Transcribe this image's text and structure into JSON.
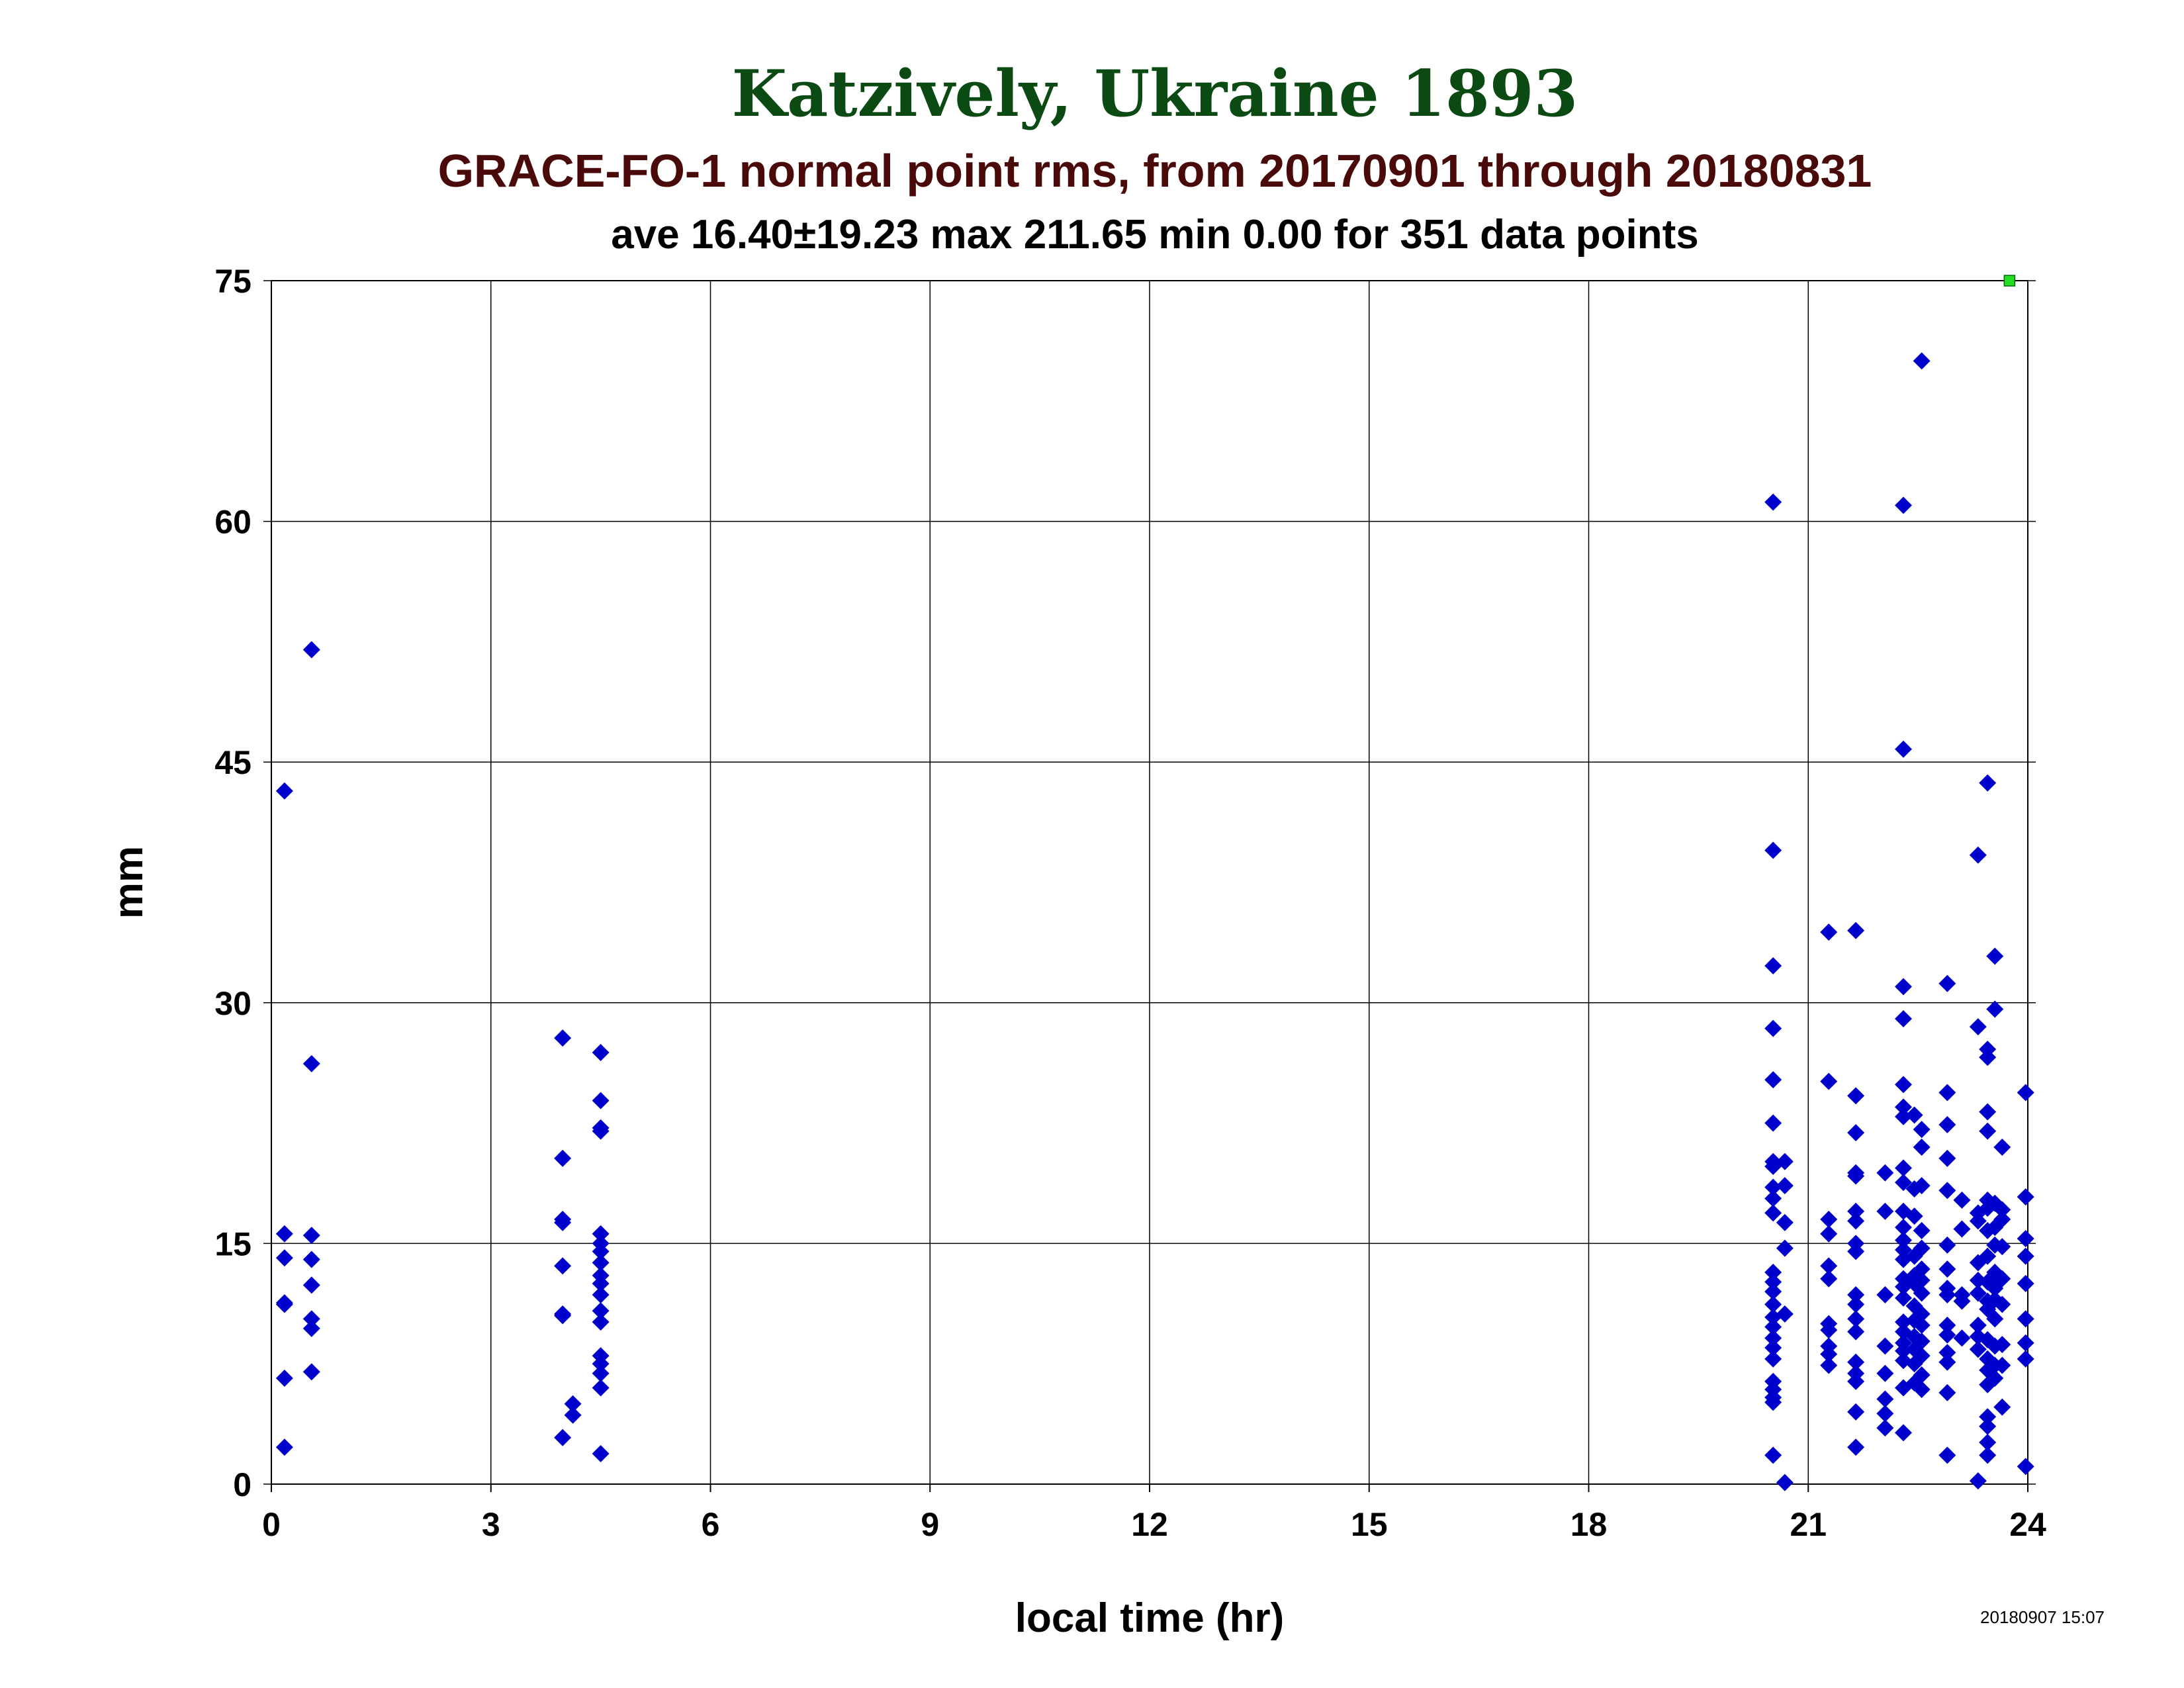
{
  "chart_data": {
    "type": "scatter",
    "title": "Katzively, Ukraine 1893",
    "subtitle": "GRACE-FO-1 normal point rms, from 20170901 through 20180831",
    "stats_line": "ave 16.40±19.23 max 211.65 min 0.00 for 351 data points",
    "xlabel": "local time (hr)",
    "ylabel": "mm",
    "xlim": [
      0,
      24
    ],
    "ylim": [
      0,
      75
    ],
    "xticks": [
      "0",
      "3",
      "6",
      "9",
      "12",
      "15",
      "18",
      "21",
      "24"
    ],
    "yticks": [
      "0",
      "15",
      "30",
      "45",
      "60",
      "75"
    ],
    "grid": true,
    "timestamp": "20180907 15:07",
    "colors": {
      "points": "#0000cc",
      "marker_overflow": "#22dd22",
      "title": "#0b4a12",
      "subtitle": "#4a0a0a"
    },
    "overflow_marker": {
      "x": 23.75,
      "y": 75
    },
    "series": [
      {
        "marker": "diamond",
        "points": [
          [
            0.18,
            43.2
          ],
          [
            0.18,
            15.6
          ],
          [
            0.18,
            14.1
          ],
          [
            0.18,
            11.3
          ],
          [
            0.18,
            11.2
          ],
          [
            0.18,
            6.6
          ],
          [
            0.18,
            2.3
          ],
          [
            0.55,
            52.0
          ],
          [
            0.55,
            26.2
          ],
          [
            0.55,
            15.5
          ],
          [
            0.55,
            14.0
          ],
          [
            0.55,
            12.4
          ],
          [
            0.55,
            10.3
          ],
          [
            0.55,
            9.7
          ],
          [
            0.55,
            7.0
          ],
          [
            3.98,
            27.8
          ],
          [
            3.98,
            20.3
          ],
          [
            3.98,
            16.5
          ],
          [
            3.98,
            16.3
          ],
          [
            3.98,
            13.6
          ],
          [
            3.98,
            10.6
          ],
          [
            3.98,
            10.5
          ],
          [
            3.98,
            2.9
          ],
          [
            4.12,
            5.0
          ],
          [
            4.12,
            4.3
          ],
          [
            4.5,
            26.9
          ],
          [
            4.5,
            23.9
          ],
          [
            4.5,
            22.2
          ],
          [
            4.5,
            22.0
          ],
          [
            4.5,
            15.6
          ],
          [
            4.5,
            15.0
          ],
          [
            4.5,
            14.5
          ],
          [
            4.5,
            13.8
          ],
          [
            4.5,
            13.0
          ],
          [
            4.5,
            12.5
          ],
          [
            4.5,
            11.8
          ],
          [
            4.5,
            10.8
          ],
          [
            4.5,
            10.1
          ],
          [
            4.5,
            8.0
          ],
          [
            4.5,
            7.5
          ],
          [
            4.5,
            6.9
          ],
          [
            4.5,
            6.0
          ],
          [
            4.5,
            1.9
          ],
          [
            20.52,
            61.2
          ],
          [
            20.52,
            39.5
          ],
          [
            20.52,
            32.3
          ],
          [
            20.52,
            28.4
          ],
          [
            20.52,
            25.2
          ],
          [
            20.52,
            22.5
          ],
          [
            20.52,
            20.1
          ],
          [
            20.52,
            19.8
          ],
          [
            20.52,
            18.5
          ],
          [
            20.52,
            17.8
          ],
          [
            20.52,
            16.9
          ],
          [
            20.52,
            13.2
          ],
          [
            20.52,
            12.6
          ],
          [
            20.52,
            12.0
          ],
          [
            20.52,
            11.2
          ],
          [
            20.52,
            10.4
          ],
          [
            20.52,
            9.8
          ],
          [
            20.52,
            9.1
          ],
          [
            20.52,
            8.5
          ],
          [
            20.52,
            7.8
          ],
          [
            20.52,
            6.4
          ],
          [
            20.52,
            5.9
          ],
          [
            20.52,
            5.4
          ],
          [
            20.52,
            5.1
          ],
          [
            20.52,
            1.8
          ],
          [
            20.68,
            20.1
          ],
          [
            20.68,
            18.6
          ],
          [
            20.68,
            16.3
          ],
          [
            20.68,
            14.7
          ],
          [
            20.68,
            10.6
          ],
          [
            20.68,
            0.1
          ],
          [
            21.28,
            34.4
          ],
          [
            21.28,
            25.1
          ],
          [
            21.28,
            16.5
          ],
          [
            21.28,
            15.6
          ],
          [
            21.28,
            13.6
          ],
          [
            21.28,
            12.8
          ],
          [
            21.28,
            10.0
          ],
          [
            21.28,
            9.6
          ],
          [
            21.28,
            8.6
          ],
          [
            21.28,
            8.1
          ],
          [
            21.28,
            7.4
          ],
          [
            21.65,
            34.5
          ],
          [
            21.65,
            24.2
          ],
          [
            21.65,
            21.9
          ],
          [
            21.65,
            19.4
          ],
          [
            21.65,
            19.2
          ],
          [
            21.65,
            17.0
          ],
          [
            21.65,
            16.4
          ],
          [
            21.65,
            15.0
          ],
          [
            21.65,
            14.5
          ],
          [
            21.65,
            11.8
          ],
          [
            21.65,
            11.2
          ],
          [
            21.65,
            10.3
          ],
          [
            21.65,
            9.5
          ],
          [
            21.65,
            7.6
          ],
          [
            21.65,
            6.9
          ],
          [
            21.65,
            6.4
          ],
          [
            21.65,
            4.5
          ],
          [
            21.65,
            2.3
          ],
          [
            22.05,
            19.4
          ],
          [
            22.05,
            17.0
          ],
          [
            22.05,
            11.8
          ],
          [
            22.05,
            8.6
          ],
          [
            22.05,
            6.9
          ],
          [
            22.05,
            5.3
          ],
          [
            22.05,
            4.4
          ],
          [
            22.05,
            3.5
          ],
          [
            22.3,
            61.0
          ],
          [
            22.3,
            45.8
          ],
          [
            22.3,
            31.0
          ],
          [
            22.3,
            29.0
          ],
          [
            22.3,
            24.9
          ],
          [
            22.3,
            23.5
          ],
          [
            22.3,
            22.9
          ],
          [
            22.3,
            19.7
          ],
          [
            22.3,
            18.8
          ],
          [
            22.3,
            17.0
          ],
          [
            22.3,
            16.0
          ],
          [
            22.3,
            15.2
          ],
          [
            22.3,
            14.6
          ],
          [
            22.3,
            14.0
          ],
          [
            22.3,
            12.8
          ],
          [
            22.3,
            12.3
          ],
          [
            22.3,
            11.6
          ],
          [
            22.3,
            10.1
          ],
          [
            22.3,
            9.5
          ],
          [
            22.3,
            8.8
          ],
          [
            22.3,
            8.3
          ],
          [
            22.3,
            7.7
          ],
          [
            22.3,
            6.0
          ],
          [
            22.3,
            3.2
          ],
          [
            22.45,
            23.0
          ],
          [
            22.45,
            18.4
          ],
          [
            22.45,
            16.7
          ],
          [
            22.45,
            14.2
          ],
          [
            22.45,
            13.0
          ],
          [
            22.45,
            12.5
          ],
          [
            22.45,
            11.1
          ],
          [
            22.45,
            10.2
          ],
          [
            22.45,
            9.2
          ],
          [
            22.45,
            8.4
          ],
          [
            22.45,
            7.5
          ],
          [
            22.45,
            6.3
          ],
          [
            22.55,
            70.0
          ],
          [
            22.55,
            22.1
          ],
          [
            22.55,
            21.0
          ],
          [
            22.55,
            18.6
          ],
          [
            22.55,
            15.8
          ],
          [
            22.55,
            14.7
          ],
          [
            22.55,
            13.4
          ],
          [
            22.55,
            12.7
          ],
          [
            22.55,
            11.9
          ],
          [
            22.55,
            10.6
          ],
          [
            22.55,
            9.9
          ],
          [
            22.55,
            8.9
          ],
          [
            22.55,
            8.0
          ],
          [
            22.55,
            6.8
          ],
          [
            22.55,
            5.9
          ],
          [
            22.9,
            31.2
          ],
          [
            22.9,
            24.4
          ],
          [
            22.9,
            22.4
          ],
          [
            22.9,
            20.3
          ],
          [
            22.9,
            18.3
          ],
          [
            22.9,
            14.9
          ],
          [
            22.9,
            13.4
          ],
          [
            22.9,
            12.2
          ],
          [
            22.9,
            11.8
          ],
          [
            22.9,
            9.9
          ],
          [
            22.9,
            9.3
          ],
          [
            22.9,
            8.2
          ],
          [
            22.9,
            7.6
          ],
          [
            22.9,
            5.7
          ],
          [
            22.9,
            1.8
          ],
          [
            23.1,
            17.7
          ],
          [
            23.1,
            15.9
          ],
          [
            23.1,
            11.8
          ],
          [
            23.1,
            11.4
          ],
          [
            23.1,
            9.1
          ],
          [
            23.32,
            39.2
          ],
          [
            23.32,
            28.5
          ],
          [
            23.32,
            16.9
          ],
          [
            23.32,
            16.4
          ],
          [
            23.32,
            13.8
          ],
          [
            23.32,
            12.7
          ],
          [
            23.32,
            11.9
          ],
          [
            23.32,
            9.9
          ],
          [
            23.32,
            9.2
          ],
          [
            23.32,
            8.4
          ],
          [
            23.32,
            0.2
          ],
          [
            23.45,
            43.7
          ],
          [
            23.45,
            27.1
          ],
          [
            23.45,
            26.6
          ],
          [
            23.45,
            23.2
          ],
          [
            23.45,
            22.0
          ],
          [
            23.45,
            17.7
          ],
          [
            23.45,
            17.2
          ],
          [
            23.45,
            15.8
          ],
          [
            23.45,
            14.2
          ],
          [
            23.45,
            12.6
          ],
          [
            23.45,
            11.4
          ],
          [
            23.45,
            10.9
          ],
          [
            23.45,
            9.0
          ],
          [
            23.45,
            7.8
          ],
          [
            23.45,
            7.1
          ],
          [
            23.45,
            6.2
          ],
          [
            23.45,
            4.2
          ],
          [
            23.45,
            3.6
          ],
          [
            23.45,
            2.6
          ],
          [
            23.45,
            1.8
          ],
          [
            23.55,
            32.9
          ],
          [
            23.55,
            29.6
          ],
          [
            23.55,
            17.5
          ],
          [
            23.55,
            16.0
          ],
          [
            23.55,
            14.9
          ],
          [
            23.55,
            13.2
          ],
          [
            23.55,
            12.2
          ],
          [
            23.55,
            11.5
          ],
          [
            23.55,
            10.3
          ],
          [
            23.55,
            8.6
          ],
          [
            23.55,
            7.4
          ],
          [
            23.55,
            6.6
          ],
          [
            23.65,
            21.0
          ],
          [
            23.65,
            17.1
          ],
          [
            23.65,
            16.5
          ],
          [
            23.65,
            14.8
          ],
          [
            23.65,
            12.8
          ],
          [
            23.65,
            11.2
          ],
          [
            23.65,
            8.7
          ],
          [
            23.65,
            7.4
          ],
          [
            23.65,
            4.8
          ],
          [
            23.97,
            24.4
          ],
          [
            23.97,
            17.9
          ],
          [
            23.97,
            15.3
          ],
          [
            23.97,
            14.2
          ],
          [
            23.97,
            12.5
          ],
          [
            23.97,
            10.3
          ],
          [
            23.97,
            8.8
          ],
          [
            23.97,
            7.8
          ],
          [
            23.97,
            1.1
          ]
        ]
      }
    ]
  }
}
